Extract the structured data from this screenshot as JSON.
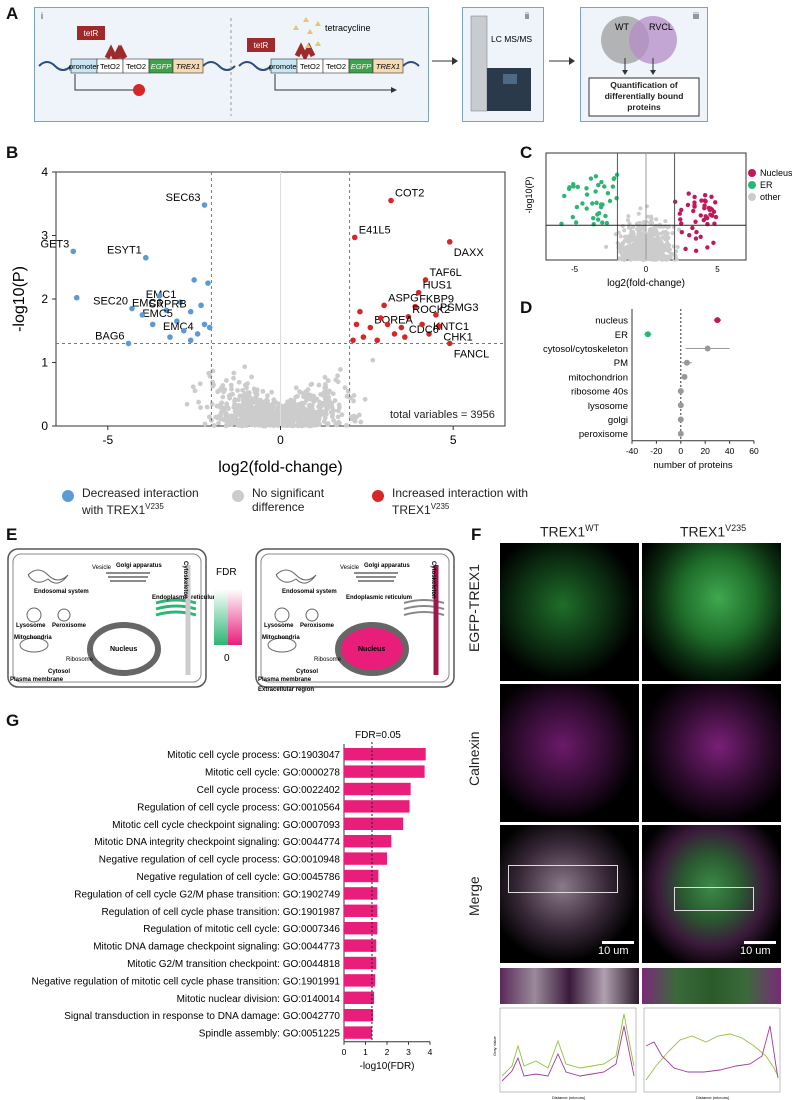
{
  "panelA": {
    "label": "A",
    "sub_i": "i",
    "sub_ii": "ii",
    "sub_iii": "iii",
    "tetR": "tetR",
    "tetracycline": "tetracycline",
    "promoter": "promoter",
    "teto1": "TetO2",
    "teto2": "TetO2",
    "egfp": "EGFP",
    "trex1": "TREX1",
    "lcms": "LC MS/MS",
    "wt": "WT",
    "rvcl": "RVCL",
    "quant": "Quantification of differentially bound proteins"
  },
  "panelB": {
    "label": "B",
    "total": "total variables = 3956",
    "legend_dec": "Decreased interaction with TREX1",
    "legend_dec_sup": "V235",
    "legend_ns": "No significant difference",
    "legend_inc": "Increased interaction with TREX1",
    "legend_inc_sup": "V235"
  },
  "chart_data": [
    {
      "type": "scatter",
      "id": "B-volcano",
      "xlabel": "log2(fold-change)",
      "ylabel": "-log10(P)",
      "xlim": [
        -6.5,
        6.5
      ],
      "ylim": [
        0,
        4
      ],
      "xticks": [
        -5,
        0,
        5
      ],
      "yticks": [
        0,
        1,
        2,
        3,
        4
      ],
      "thresholds": {
        "x": [
          -2,
          2
        ],
        "y": 1.3
      },
      "series": [
        {
          "name": "Decreased",
          "color": "#5b9bd5",
          "points": [
            {
              "x": -6.0,
              "y": 2.75,
              "label": "GET3"
            },
            {
              "x": -5.9,
              "y": 2.02,
              "label": ""
            },
            {
              "x": -3.9,
              "y": 2.65,
              "label": "ESYT1"
            },
            {
              "x": -2.2,
              "y": 3.48,
              "label": "SEC63"
            },
            {
              "x": -4.3,
              "y": 1.85,
              "label": "SEC20"
            },
            {
              "x": -3.3,
              "y": 1.82,
              "label": "EMC6"
            },
            {
              "x": -2.9,
              "y": 1.95,
              "label": "EMC1"
            },
            {
              "x": -2.6,
              "y": 1.8,
              "label": "SRPRB"
            },
            {
              "x": -3.0,
              "y": 1.65,
              "label": "EMC5"
            },
            {
              "x": -2.4,
              "y": 1.45,
              "label": "EMC4"
            },
            {
              "x": -4.4,
              "y": 1.3,
              "label": "BAG6"
            },
            {
              "x": -3.5,
              "y": 2.05,
              "label": ""
            },
            {
              "x": -2.5,
              "y": 2.3,
              "label": ""
            },
            {
              "x": -2.1,
              "y": 2.25,
              "label": ""
            },
            {
              "x": -3.7,
              "y": 1.6,
              "label": ""
            },
            {
              "x": -2.8,
              "y": 1.5,
              "label": ""
            },
            {
              "x": -2.2,
              "y": 1.6,
              "label": ""
            },
            {
              "x": -3.2,
              "y": 1.4,
              "label": ""
            },
            {
              "x": -2.6,
              "y": 1.35,
              "label": ""
            },
            {
              "x": -4.0,
              "y": 1.75,
              "label": ""
            },
            {
              "x": -2.3,
              "y": 1.9,
              "label": ""
            },
            {
              "x": -2.05,
              "y": 1.55,
              "label": ""
            }
          ]
        },
        {
          "name": "Increased",
          "color": "#d62728",
          "points": [
            {
              "x": 3.2,
              "y": 3.55,
              "label": "COT2"
            },
            {
              "x": 2.15,
              "y": 2.97,
              "label": "E41L5"
            },
            {
              "x": 4.9,
              "y": 2.9,
              "label": "DAXX"
            },
            {
              "x": 4.2,
              "y": 2.3,
              "label": "TAF6L"
            },
            {
              "x": 4.0,
              "y": 2.1,
              "label": "HUS1"
            },
            {
              "x": 3.0,
              "y": 1.9,
              "label": "ASPG"
            },
            {
              "x": 3.9,
              "y": 1.88,
              "label": "FKBP9"
            },
            {
              "x": 3.7,
              "y": 1.72,
              "label": "ROCK2"
            },
            {
              "x": 4.5,
              "y": 1.75,
              "label": "PSMG3"
            },
            {
              "x": 4.6,
              "y": 1.57,
              "label": "CHK1"
            },
            {
              "x": 2.6,
              "y": 1.55,
              "label": "BOREA"
            },
            {
              "x": 4.3,
              "y": 1.45,
              "label": "KNTC1"
            },
            {
              "x": 3.6,
              "y": 1.4,
              "label": "CDC6"
            },
            {
              "x": 4.9,
              "y": 1.3,
              "label": "FANCL"
            },
            {
              "x": 2.2,
              "y": 1.6,
              "label": ""
            },
            {
              "x": 2.4,
              "y": 1.4,
              "label": ""
            },
            {
              "x": 2.8,
              "y": 1.35,
              "label": ""
            },
            {
              "x": 3.1,
              "y": 1.6,
              "label": ""
            },
            {
              "x": 3.3,
              "y": 1.45,
              "label": ""
            },
            {
              "x": 2.3,
              "y": 1.8,
              "label": ""
            },
            {
              "x": 2.9,
              "y": 1.7,
              "label": ""
            },
            {
              "x": 3.5,
              "y": 1.55,
              "label": ""
            },
            {
              "x": 4.1,
              "y": 1.6,
              "label": ""
            },
            {
              "x": 2.1,
              "y": 1.35,
              "label": ""
            }
          ]
        }
      ]
    },
    {
      "type": "scatter",
      "id": "C-volcano",
      "title": "",
      "xlabel": "log2(fold-change)",
      "ylabel": "-log10(P)",
      "xticks": [
        -5,
        0,
        5
      ],
      "legend": [
        "Nucleus",
        "ER",
        "other"
      ],
      "colors": {
        "Nucleus": "#c2185b",
        "ER": "#2bb673",
        "other": "#cccccc"
      }
    },
    {
      "type": "bar",
      "id": "D-dotplot",
      "xlabel": "number of proteins",
      "categories": [
        "nucleus",
        "ER",
        "cytosol/cytoskeleton",
        "PM",
        "mitochondrion",
        "ribosome 40s",
        "lysosome",
        "golgi",
        "peroxisome"
      ],
      "values": [
        30,
        -27,
        22,
        5,
        3,
        0,
        0,
        0,
        0
      ],
      "errors": [
        3,
        3,
        18,
        4,
        2,
        1,
        1,
        1,
        1
      ],
      "colors": [
        "#c2185b",
        "#2bb673",
        "#999999",
        "#999999",
        "#999999",
        "#999999",
        "#999999",
        "#999999",
        "#999999"
      ],
      "xlim": [
        -40,
        60
      ],
      "xticks": [
        -40,
        -20,
        0,
        20,
        40,
        60
      ]
    },
    {
      "type": "bar",
      "id": "G-enrichment",
      "xlabel": "-log10(FDR)",
      "annotation": "FDR=0.05",
      "threshold": 1.3,
      "xlim": [
        0,
        4
      ],
      "xticks": [
        0,
        1,
        2,
        3,
        4
      ],
      "categories": [
        "Mitotic cell cycle process: GO:1903047",
        "Mitotic cell cycle: GO:0000278",
        "Cell cycle process: GO:0022402",
        "Regulation of cell cycle process: GO:0010564",
        "Mitotic cell cycle checkpoint signaling: GO:0007093",
        "Mitotic DNA integrity checkpoint signaling: GO:0044774",
        "Negative regulation of cell cycle process: GO:0010948",
        "Negative regulation of cell cycle: GO:0045786",
        "Regulation of cell cycle G2/M phase transition: GO:1902749",
        "Regulation of cell cycle phase transition: GO:1901987",
        "Regulation of mitotic cell cycle: GO:0007346",
        "Mitotic DNA damage checkpoint signaling: GO:0044773",
        "Mitotic G2/M transition checkpoint: GO:0044818",
        "Negative regulation of mitotic cell cycle phase transition: GO:1901991",
        "Mitotic nuclear division: GO:0140014",
        "Signal transduction in response to DNA damage: GO:0042770",
        "Spindle assembly: GO:0051225"
      ],
      "values": [
        3.8,
        3.75,
        3.1,
        3.05,
        2.75,
        2.2,
        2.0,
        1.6,
        1.55,
        1.55,
        1.55,
        1.5,
        1.5,
        1.45,
        1.4,
        1.35,
        1.3
      ],
      "color": "#e91e7a"
    }
  ],
  "panelE": {
    "label": "E",
    "fdr": "FDR",
    "zero": "0",
    "vesicle": "Vesicle",
    "endo": "Endosomal system",
    "golgi": "Golgi apparatus",
    "cyto": "Cytoskeleton",
    "er": "Endoplasmic reticulum",
    "lyso": "Lysosome",
    "perox": "Peroxisome",
    "mito": "Mitochondria",
    "nucleus": "Nucleus",
    "ribo": "Ribosome",
    "cytosol": "Cytosol",
    "pm": "Plasma membrane",
    "extra": "Extracellular region"
  },
  "panelF": {
    "label": "F",
    "col_wt": "TREX1",
    "col_wt_sup": "WT",
    "col_mut": "TREX1",
    "col_mut_sup": "V235",
    "row1": "EGFP-TREX1",
    "row2": "Calnexin",
    "row3": "Merge",
    "scale1": "10 um",
    "scale2": "10 um",
    "profile_x": "Distance (microns)",
    "profile_y": "Gray Value"
  },
  "panelG": {
    "label": "G"
  },
  "colors": {
    "pink": "#e91e7a",
    "green": "#2bb673",
    "blue": "#5b9bd5",
    "red": "#d62728",
    "grey": "#cccccc"
  }
}
